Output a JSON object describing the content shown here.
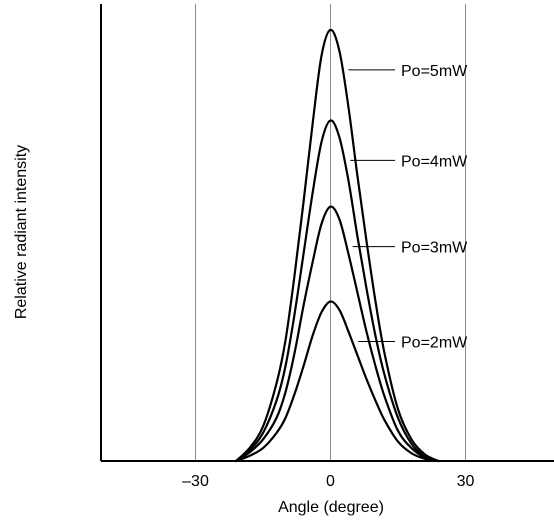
{
  "chart_data": {
    "type": "line",
    "title": "",
    "xlabel": "Angle (degree)",
    "ylabel": "Relative radiant intensity",
    "xlim": [
      -51,
      49
    ],
    "ylim": [
      0,
      1.06
    ],
    "x_ticks": [
      {
        "value": -30,
        "label": "–30"
      },
      {
        "value": 0,
        "label": "0"
      },
      {
        "value": 30,
        "label": "30"
      }
    ],
    "y_ticks": [],
    "grid": {
      "x": true,
      "y": false
    },
    "legend": "none",
    "series": [
      {
        "name": "Po=5mW",
        "label": "Po=5mW",
        "peak": 1.0,
        "x": [
          -21,
          -18,
          -15,
          -12,
          -10,
          -8,
          -6,
          -4,
          -2,
          0,
          2,
          4,
          6,
          8,
          10,
          12,
          15,
          18,
          21,
          24
        ],
        "y": [
          0.0,
          0.03,
          0.08,
          0.18,
          0.28,
          0.43,
          0.6,
          0.78,
          0.94,
          1.0,
          0.95,
          0.82,
          0.66,
          0.51,
          0.37,
          0.25,
          0.12,
          0.05,
          0.015,
          0.0
        ]
      },
      {
        "name": "Po=4mW",
        "label": "Po=4mW",
        "peak": 0.79,
        "x": [
          -21,
          -18,
          -15,
          -12,
          -10,
          -8,
          -6,
          -4,
          -2,
          0,
          2,
          4,
          6,
          8,
          10,
          12,
          15,
          18,
          21,
          24
        ],
        "y": [
          0.0,
          0.025,
          0.065,
          0.14,
          0.22,
          0.34,
          0.48,
          0.62,
          0.74,
          0.79,
          0.75,
          0.65,
          0.52,
          0.4,
          0.29,
          0.2,
          0.1,
          0.04,
          0.01,
          0.0
        ]
      },
      {
        "name": "Po=3mW",
        "label": "Po=3mW",
        "peak": 0.59,
        "x": [
          -21,
          -18,
          -15,
          -12,
          -10,
          -8,
          -6,
          -4,
          -2,
          0,
          2,
          4,
          6,
          8,
          10,
          12,
          15,
          18,
          21,
          24
        ],
        "y": [
          0.0,
          0.02,
          0.05,
          0.1,
          0.16,
          0.25,
          0.36,
          0.46,
          0.55,
          0.59,
          0.56,
          0.48,
          0.39,
          0.3,
          0.22,
          0.15,
          0.07,
          0.03,
          0.008,
          0.0
        ]
      },
      {
        "name": "Po=2mW",
        "label": "Po=2mW",
        "peak": 0.37,
        "x": [
          -21,
          -18,
          -15,
          -12,
          -10,
          -8,
          -6,
          -4,
          -2,
          0,
          2,
          4,
          6,
          8,
          10,
          12,
          15,
          18,
          21,
          24
        ],
        "y": [
          0.0,
          0.012,
          0.03,
          0.065,
          0.1,
          0.155,
          0.22,
          0.29,
          0.345,
          0.37,
          0.35,
          0.3,
          0.245,
          0.19,
          0.14,
          0.095,
          0.045,
          0.018,
          0.005,
          0.0
        ]
      }
    ],
    "colors": {
      "curve": "#000000",
      "grid": "#8c8c8c",
      "axis": "#000000"
    }
  }
}
